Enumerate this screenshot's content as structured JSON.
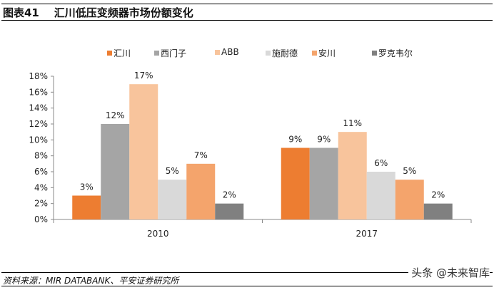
{
  "header": {
    "figure_no": "图表41",
    "title": "汇川低压变频器市场份额变化"
  },
  "footer": {
    "source": "资料来源：MIR DATABANK、平安证券研究所",
    "watermark": "头条 @未来智库"
  },
  "chart_data": {
    "type": "bar",
    "categories": [
      "2010",
      "2017"
    ],
    "series": [
      {
        "name": "汇川",
        "values": [
          3,
          9
        ],
        "color": "#ED7D31"
      },
      {
        "name": "西门子",
        "values": [
          12,
          9
        ],
        "color": "#A5A5A5"
      },
      {
        "name": "ABB",
        "values": [
          17,
          11
        ],
        "color": "#F8C49C"
      },
      {
        "name": "施耐德",
        "values": [
          5,
          6
        ],
        "color": "#D9D9D9"
      },
      {
        "name": "安川",
        "values": [
          7,
          5
        ],
        "color": "#F4A46C"
      },
      {
        "name": "罗克韦尔",
        "values": [
          2,
          2
        ],
        "color": "#808080"
      }
    ],
    "yticks": [
      "0%",
      "2%",
      "4%",
      "6%",
      "8%",
      "10%",
      "12%",
      "14%",
      "16%",
      "18%"
    ],
    "ylim": [
      0,
      18
    ],
    "legend": "top",
    "grid": false,
    "data_labels": true
  }
}
